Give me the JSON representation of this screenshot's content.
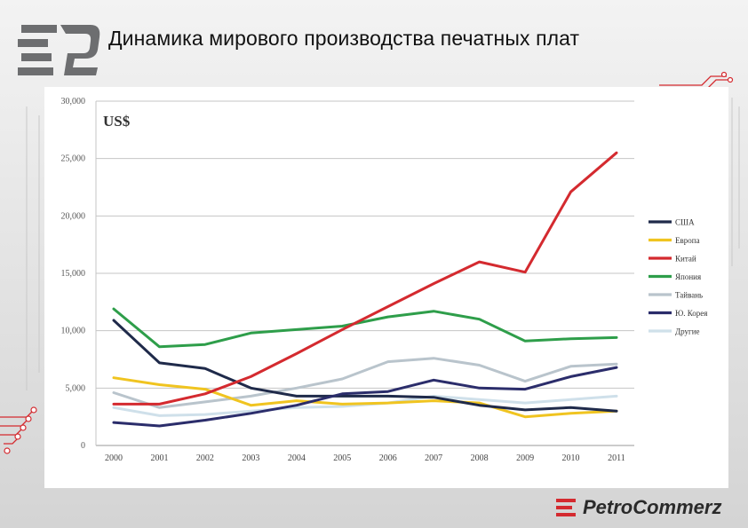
{
  "slide": {
    "title": "Динамика мирового производства печатных плат",
    "brand_text": "PetroCommerz",
    "logo_icon": "ep-logo-icon"
  },
  "colors": {
    "accent_red": "#c8252c",
    "logo_grey": "#6d6e70"
  },
  "chart_data": {
    "type": "line",
    "title": "",
    "unit_label": "US$",
    "xlabel": "",
    "ylabel": "",
    "x": [
      "2000",
      "2001",
      "2002",
      "2003",
      "2004",
      "2005",
      "2006",
      "2007",
      "2008",
      "2009",
      "2010",
      "2011"
    ],
    "ylim": [
      0,
      30000
    ],
    "yticks": [
      0,
      5000,
      10000,
      15000,
      20000,
      25000,
      30000
    ],
    "ytick_labels": [
      "0",
      "5,000",
      "10,000",
      "15,000",
      "20,000",
      "25,000",
      "30,000"
    ],
    "grid": true,
    "legend_position": "right",
    "series": [
      {
        "name": "США",
        "color": "#1f2a4a",
        "values": [
          10900,
          7200,
          6700,
          5000,
          4300,
          4300,
          4300,
          4200,
          3500,
          3100,
          3300,
          3000
        ]
      },
      {
        "name": "Европа",
        "color": "#f0c420",
        "values": [
          5900,
          5300,
          4900,
          3500,
          3900,
          3600,
          3700,
          3900,
          3700,
          2500,
          2800,
          3000
        ]
      },
      {
        "name": "Китай",
        "color": "#d42a2f",
        "values": [
          3600,
          3600,
          4500,
          6000,
          8000,
          10100,
          12100,
          14100,
          16000,
          15100,
          22100,
          25500
        ]
      },
      {
        "name": "Япония",
        "color": "#2e9e4a",
        "values": [
          11900,
          8600,
          8800,
          9800,
          10100,
          10400,
          11200,
          11700,
          11000,
          9100,
          9300,
          9400
        ]
      },
      {
        "name": "Тайвань",
        "color": "#b9c4cc",
        "values": [
          4600,
          3300,
          3800,
          4300,
          5000,
          5800,
          7300,
          7600,
          7000,
          5600,
          6900,
          7100
        ]
      },
      {
        "name": "Ю. Корея",
        "color": "#2b2d6b",
        "values": [
          2000,
          1700,
          2200,
          2800,
          3500,
          4500,
          4700,
          5700,
          5000,
          4900,
          6000,
          6800
        ]
      },
      {
        "name": "Другие",
        "color": "#cfe0ea",
        "values": [
          3300,
          2600,
          2700,
          3000,
          3300,
          3400,
          3700,
          4300,
          4000,
          3700,
          4000,
          4300
        ]
      }
    ]
  }
}
